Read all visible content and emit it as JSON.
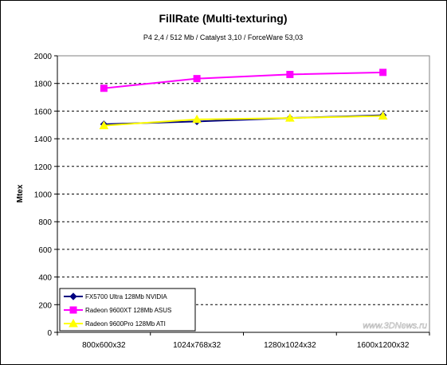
{
  "chart_data": {
    "type": "line",
    "title": "FillRate (Multi-texturing)",
    "subtitle": "P4 2,4 / 512 Mb / Catalyst 3,10 / ForceWare 53,03",
    "xlabel": "",
    "ylabel": "Mtex",
    "ylim": [
      0,
      2000
    ],
    "yticks": [
      "0",
      "200",
      "400",
      "600",
      "800",
      "1000",
      "1200",
      "1400",
      "1600",
      "1800",
      "2000"
    ],
    "categories": [
      "800x600x32",
      "1024x768x32",
      "1280x1024x32",
      "1600x1200x32"
    ],
    "grid": true,
    "legend_position": "bottom-left",
    "series": [
      {
        "name": "FX5700 Ultra 128Mb NVIDIA",
        "values": [
          1505,
          1525,
          1550,
          1570
        ],
        "color": "#000080",
        "marker": "diamond"
      },
      {
        "name": "Radeon 9600XT 128Mb ASUS",
        "values": [
          1765,
          1835,
          1865,
          1880
        ],
        "color": "#ff00ff",
        "marker": "square"
      },
      {
        "name": "Radeon 9600Pro 128Mb ATI",
        "values": [
          1495,
          1540,
          1550,
          1565
        ],
        "color": "#ffff00",
        "marker": "triangle"
      }
    ],
    "watermark": "www.3DNews.ru"
  }
}
